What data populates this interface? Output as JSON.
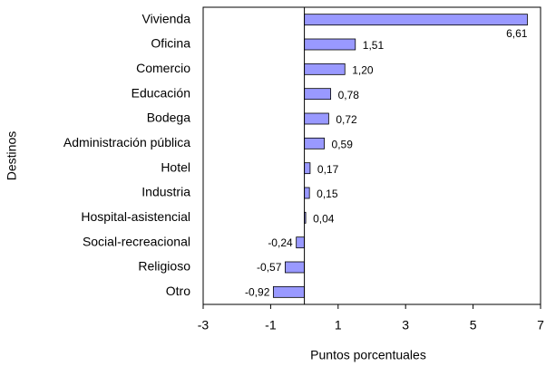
{
  "chart_data": {
    "type": "bar",
    "orientation": "horizontal",
    "categories": [
      "Vivienda",
      "Oficina",
      "Comercio",
      "Educación",
      "Bodega",
      "Administración pública",
      "Hotel",
      "Industria",
      "Hospital-asistencial",
      "Social-recreacional",
      "Religioso",
      "Otro"
    ],
    "values": [
      6.61,
      1.51,
      1.2,
      0.78,
      0.72,
      0.59,
      0.17,
      0.15,
      0.04,
      -0.24,
      -0.57,
      -0.92
    ],
    "value_labels": [
      "6,61",
      "1,51",
      "1,20",
      "0,78",
      "0,72",
      "0,59",
      "0,17",
      "0,15",
      "0,04",
      "-0,24",
      "-0,57",
      "-0,92"
    ],
    "color": "#9999ff",
    "xlim": [
      -3,
      7
    ],
    "xticks": [
      -3,
      -1,
      1,
      3,
      5,
      7
    ],
    "xlabel": "Puntos porcentuales",
    "ylabel": "Destinos"
  }
}
